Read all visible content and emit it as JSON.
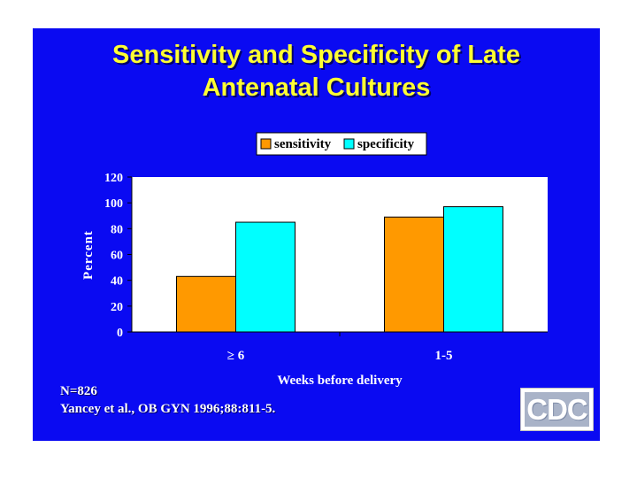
{
  "slide": {
    "title_line1": "Sensitivity and Specificity of Late",
    "title_line2": "Antenatal Cultures",
    "footnote_line1": "N=826",
    "footnote_line2": "Yancey et al., OB GYN 1996;88:811-5.",
    "logo_text": "CDC"
  },
  "chart_data": {
    "type": "bar",
    "categories": [
      "≥ 6",
      "1-5"
    ],
    "series": [
      {
        "name": "sensitivity",
        "values": [
          43,
          89
        ],
        "color": "#ff9900"
      },
      {
        "name": "specificity",
        "values": [
          85,
          97
        ],
        "color": "#00ffff"
      }
    ],
    "title": "",
    "xlabel": "Weeks before delivery",
    "ylabel": "Percent",
    "ylim": [
      0,
      120
    ],
    "yticks": [
      0,
      20,
      40,
      60,
      80,
      100,
      120
    ],
    "legend_position": "top",
    "grid": false,
    "plot_background": "#ffffff"
  }
}
